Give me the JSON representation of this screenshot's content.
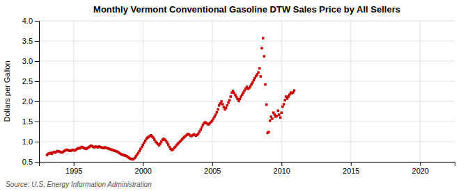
{
  "chart_data": {
    "type": "scatter",
    "title": "Monthly Vermont Conventional Gasoline DTW Sales Price by All Sellers",
    "ylabel": "Dollars per Gallon",
    "annotations": [
      "Source: U.S. Energy Information Administration"
    ],
    "color": "#cc0000",
    "marker": "square",
    "grid": true,
    "xlim": [
      1992.5,
      2022.5
    ],
    "ylim": [
      0.5,
      4.0
    ],
    "xticks": [
      1995,
      2000,
      2005,
      2010,
      2015,
      2020
    ],
    "yticks": [
      0.5,
      {
        "value": 1.0,
        "label": "1.0"
      },
      1.5,
      {
        "value": 2.0,
        "label": "2.0"
      },
      2.5,
      {
        "value": 3.0,
        "label": "3.0"
      },
      3.5,
      {
        "value": 4.0,
        "label": "4.0"
      }
    ],
    "x": [
      1993.08,
      1993.17,
      1993.25,
      1993.33,
      1993.42,
      1993.5,
      1993.58,
      1993.67,
      1993.75,
      1993.83,
      1993.92,
      1994.0,
      1994.08,
      1994.17,
      1994.25,
      1994.33,
      1994.42,
      1994.5,
      1994.58,
      1994.67,
      1994.75,
      1994.83,
      1994.92,
      1995.0,
      1995.08,
      1995.17,
      1995.25,
      1995.33,
      1995.42,
      1995.5,
      1995.58,
      1995.67,
      1995.75,
      1995.83,
      1995.92,
      1996.0,
      1996.08,
      1996.17,
      1996.25,
      1996.33,
      1996.42,
      1996.5,
      1996.58,
      1996.67,
      1996.75,
      1996.83,
      1996.92,
      1997.0,
      1997.08,
      1997.17,
      1997.25,
      1997.33,
      1997.42,
      1997.5,
      1997.58,
      1997.67,
      1997.75,
      1997.83,
      1997.92,
      1998.0,
      1998.08,
      1998.17,
      1998.25,
      1998.33,
      1998.42,
      1998.5,
      1998.58,
      1998.67,
      1998.75,
      1998.83,
      1998.92,
      1999.0,
      1999.08,
      1999.17,
      1999.25,
      1999.33,
      1999.42,
      1999.5,
      1999.58,
      1999.67,
      1999.75,
      1999.83,
      1999.92,
      2000.0,
      2000.08,
      2000.17,
      2000.25,
      2000.33,
      2000.42,
      2000.5,
      2000.58,
      2000.67,
      2000.75,
      2000.83,
      2000.92,
      2001.0,
      2001.08,
      2001.17,
      2001.25,
      2001.33,
      2001.42,
      2001.5,
      2001.58,
      2001.67,
      2001.75,
      2001.83,
      2001.92,
      2002.0,
      2002.08,
      2002.17,
      2002.25,
      2002.33,
      2002.42,
      2002.5,
      2002.58,
      2002.67,
      2002.75,
      2002.83,
      2002.92,
      2003.0,
      2003.08,
      2003.17,
      2003.25,
      2003.33,
      2003.42,
      2003.5,
      2003.58,
      2003.67,
      2003.75,
      2003.83,
      2003.92,
      2004.0,
      2004.08,
      2004.17,
      2004.25,
      2004.33,
      2004.42,
      2004.5,
      2004.58,
      2004.67,
      2004.75,
      2004.83,
      2004.92,
      2005.0,
      2005.08,
      2005.17,
      2005.25,
      2005.33,
      2005.42,
      2005.5,
      2005.58,
      2005.67,
      2005.75,
      2005.83,
      2005.92,
      2006.0,
      2006.08,
      2006.17,
      2006.25,
      2006.33,
      2006.42,
      2006.5,
      2006.58,
      2006.67,
      2006.75,
      2006.83,
      2006.92,
      2007.0,
      2007.08,
      2007.17,
      2007.25,
      2007.33,
      2007.42,
      2007.5,
      2007.58,
      2007.67,
      2007.75,
      2007.83,
      2007.92,
      2008.0,
      2008.08,
      2008.17,
      2008.25,
      2008.33,
      2008.42,
      2008.5,
      2008.58,
      2008.67,
      2008.75,
      2008.83,
      2008.92,
      2009.0,
      2009.08,
      2009.17,
      2009.25,
      2009.33,
      2009.42,
      2009.5,
      2009.58,
      2009.67,
      2009.75,
      2009.83,
      2009.92,
      2010.0,
      2010.08,
      2010.17,
      2010.25,
      2010.33,
      2010.42,
      2010.5,
      2010.58,
      2010.67,
      2010.75,
      2010.83,
      2010.92
    ],
    "values": [
      0.67,
      0.7,
      0.71,
      0.72,
      0.7,
      0.73,
      0.74,
      0.73,
      0.75,
      0.77,
      0.76,
      0.75,
      0.74,
      0.73,
      0.75,
      0.77,
      0.79,
      0.8,
      0.79,
      0.78,
      0.77,
      0.78,
      0.8,
      0.79,
      0.78,
      0.8,
      0.82,
      0.84,
      0.83,
      0.85,
      0.87,
      0.86,
      0.84,
      0.83,
      0.82,
      0.84,
      0.86,
      0.88,
      0.9,
      0.89,
      0.87,
      0.86,
      0.88,
      0.87,
      0.86,
      0.88,
      0.87,
      0.86,
      0.85,
      0.84,
      0.86,
      0.85,
      0.84,
      0.83,
      0.82,
      0.81,
      0.8,
      0.79,
      0.78,
      0.77,
      0.76,
      0.75,
      0.73,
      0.71,
      0.69,
      0.68,
      0.67,
      0.66,
      0.65,
      0.64,
      0.62,
      0.6,
      0.58,
      0.57,
      0.56,
      0.57,
      0.6,
      0.64,
      0.68,
      0.72,
      0.77,
      0.82,
      0.87,
      0.92,
      0.97,
      1.02,
      1.07,
      1.1,
      1.12,
      1.14,
      1.16,
      1.13,
      1.1,
      1.05,
      1.0,
      0.97,
      0.94,
      0.91,
      0.95,
      1.0,
      1.05,
      1.07,
      1.05,
      1.02,
      0.98,
      0.93,
      0.87,
      0.82,
      0.79,
      0.81,
      0.84,
      0.87,
      0.91,
      0.94,
      0.97,
      1.0,
      1.03,
      1.06,
      1.09,
      1.12,
      1.14,
      1.17,
      1.19,
      1.18,
      1.15,
      1.14,
      1.16,
      1.18,
      1.17,
      1.15,
      1.17,
      1.2,
      1.25,
      1.3,
      1.36,
      1.42,
      1.46,
      1.48,
      1.46,
      1.44,
      1.43,
      1.46,
      1.49,
      1.52,
      1.57,
      1.62,
      1.67,
      1.73,
      1.8,
      1.9,
      1.95,
      2.0,
      1.93,
      1.86,
      1.8,
      1.84,
      1.9,
      1.97,
      2.03,
      2.12,
      2.22,
      2.26,
      2.21,
      2.16,
      2.11,
      2.06,
      2.01,
      2.06,
      2.12,
      2.17,
      2.22,
      2.27,
      2.32,
      2.36,
      2.31,
      2.33,
      2.37,
      2.42,
      2.47,
      2.53,
      2.58,
      2.63,
      2.67,
      2.72,
      2.82,
      2.62,
      3.32,
      3.57,
      3.12,
      2.42,
      1.92,
      1.22,
      1.24,
      1.52,
      1.62,
      1.57,
      1.72,
      1.67,
      1.62,
      1.64,
      1.77,
      1.67,
      1.6,
      1.72,
      1.87,
      1.93,
      2.03,
      2.12,
      2.07,
      2.12,
      2.17,
      2.22,
      2.2,
      2.22,
      2.27
    ]
  }
}
